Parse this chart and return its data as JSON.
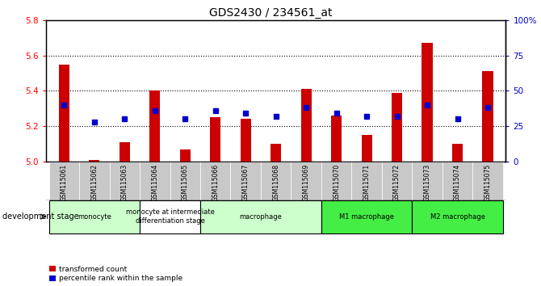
{
  "title": "GDS2430 / 234561_at",
  "samples": [
    "GSM115061",
    "GSM115062",
    "GSM115063",
    "GSM115064",
    "GSM115065",
    "GSM115066",
    "GSM115067",
    "GSM115068",
    "GSM115069",
    "GSM115070",
    "GSM115071",
    "GSM115072",
    "GSM115073",
    "GSM115074",
    "GSM115075"
  ],
  "red_values": [
    5.55,
    5.01,
    5.11,
    5.4,
    5.07,
    5.25,
    5.24,
    5.1,
    5.41,
    5.26,
    5.15,
    5.39,
    5.67,
    5.1,
    5.51
  ],
  "blue_values": [
    40,
    28,
    30,
    36,
    30,
    36,
    34,
    32,
    38,
    34,
    32,
    32,
    40,
    30,
    38
  ],
  "ylim_left": [
    5.0,
    5.8
  ],
  "ylim_right": [
    0,
    100
  ],
  "yticks_left": [
    5.0,
    5.2,
    5.4,
    5.6,
    5.8
  ],
  "yticks_right": [
    0,
    25,
    50,
    75,
    100
  ],
  "ytick_labels_right": [
    "0",
    "25",
    "50",
    "75",
    "100%"
  ],
  "stage_groups": [
    {
      "label": "monocyte",
      "start": 0,
      "end": 2,
      "color": "#ccffcc"
    },
    {
      "label": "monocyte at intermediate\ndifferentiation stage",
      "start": 3,
      "end": 4,
      "color": "#ffffff"
    },
    {
      "label": "macrophage",
      "start": 5,
      "end": 8,
      "color": "#ccffcc"
    },
    {
      "label": "M1 macrophage",
      "start": 9,
      "end": 11,
      "color": "#44ee44"
    },
    {
      "label": "M2 macrophage",
      "start": 12,
      "end": 14,
      "color": "#44ee44"
    }
  ],
  "bar_width": 0.35,
  "base_value": 5.0,
  "blue_marker_size": 5,
  "red_color": "#cc0000",
  "blue_color": "#0000cc",
  "legend_red_label": "transformed count",
  "legend_blue_label": "percentile rank within the sample",
  "dev_stage_label": "development stage",
  "tick_color_left": "red",
  "tick_color_right": "blue",
  "grid_dotted_vals": [
    5.2,
    5.4,
    5.6
  ],
  "label_bg_color": "#c8c8c8",
  "monocyte_light_green": "#ccffcc",
  "stage_border_color": "#000000"
}
